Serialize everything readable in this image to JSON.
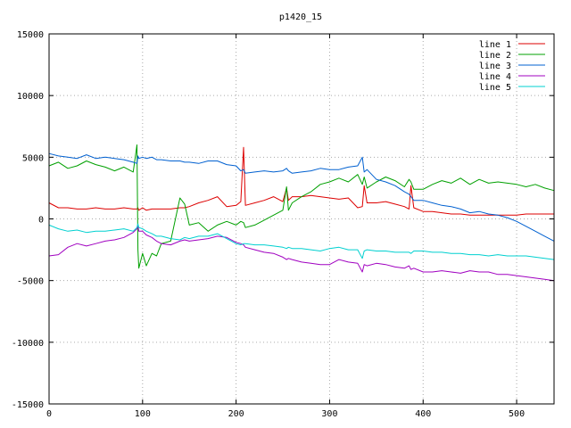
{
  "chart_data": {
    "type": "line",
    "title": "p1420_15",
    "xlabel": "",
    "ylabel": "",
    "xlim": [
      0,
      540
    ],
    "ylim": [
      -15000,
      15000
    ],
    "x_ticks": [
      "0",
      "100",
      "200",
      "300",
      "400",
      "500"
    ],
    "y_ticks": [
      "15000",
      "10000",
      "5000",
      "0",
      "-5000",
      "-10000",
      "-15000"
    ],
    "grid": true,
    "legend_position": "top-right",
    "x": [
      0,
      10,
      20,
      30,
      40,
      50,
      60,
      70,
      80,
      90,
      94,
      95,
      96,
      100,
      104,
      110,
      115,
      120,
      130,
      140,
      145,
      150,
      160,
      170,
      180,
      190,
      200,
      205,
      208,
      210,
      220,
      230,
      240,
      250,
      254,
      256,
      260,
      270,
      280,
      290,
      300,
      310,
      320,
      330,
      335,
      337,
      340,
      350,
      360,
      370,
      380,
      385,
      387,
      390,
      400,
      410,
      420,
      430,
      440,
      450,
      460,
      470,
      480,
      490,
      500,
      510,
      520,
      530,
      540
    ],
    "series": [
      {
        "name": "line 1",
        "color": "#dd0000",
        "values": [
          1300,
          900,
          900,
          800,
          800,
          900,
          800,
          800,
          900,
          800,
          800,
          900,
          700,
          900,
          700,
          800,
          800,
          800,
          800,
          900,
          900,
          1000,
          1300,
          1500,
          1800,
          1000,
          1100,
          1400,
          5800,
          1100,
          1300,
          1500,
          1800,
          1400,
          2500,
          1500,
          1800,
          1800,
          1900,
          1800,
          1700,
          1600,
          1700,
          900,
          1000,
          2700,
          1300,
          1300,
          1400,
          1200,
          1000,
          800,
          2700,
          900,
          600,
          600,
          500,
          400,
          400,
          300,
          300,
          300,
          300,
          300,
          300,
          400,
          400,
          400,
          400
        ]
      },
      {
        "name": "line 2",
        "color": "#00a000",
        "values": [
          4300,
          4600,
          4100,
          4300,
          4700,
          4400,
          4200,
          3900,
          4200,
          3800,
          6000,
          -2500,
          -4000,
          -2800,
          -3800,
          -2800,
          -3000,
          -2000,
          -1800,
          1700,
          1200,
          -500,
          -300,
          -1000,
          -500,
          -200,
          -500,
          -200,
          -300,
          -700,
          -500,
          -100,
          300,
          700,
          2600,
          700,
          1300,
          1800,
          2200,
          2800,
          3000,
          3300,
          3000,
          3600,
          2800,
          3400,
          2500,
          3000,
          3400,
          3100,
          2600,
          3200,
          3000,
          2400,
          2400,
          2800,
          3100,
          2900,
          3300,
          2800,
          3200,
          2900,
          3000,
          2900,
          2800,
          2600,
          2800,
          2500,
          2300
        ]
      },
      {
        "name": "line 3",
        "color": "#0060d0",
        "values": [
          5300,
          5100,
          5000,
          4900,
          5200,
          4900,
          5000,
          4900,
          4800,
          4600,
          4500,
          5100,
          4900,
          5000,
          4900,
          5000,
          4800,
          4800,
          4700,
          4700,
          4600,
          4600,
          4500,
          4700,
          4700,
          4400,
          4300,
          3900,
          4000,
          3700,
          3800,
          3900,
          3800,
          3900,
          4100,
          3900,
          3700,
          3800,
          3900,
          4100,
          4000,
          4000,
          4200,
          4300,
          5000,
          3800,
          4000,
          3200,
          3000,
          2700,
          2200,
          2000,
          1800,
          1500,
          1500,
          1300,
          1100,
          1000,
          800,
          500,
          600,
          400,
          300,
          100,
          -200,
          -600,
          -1000,
          -1400,
          -1800
        ]
      },
      {
        "name": "line 4",
        "color": "#a000c0",
        "values": [
          -3000,
          -2900,
          -2300,
          -2000,
          -2200,
          -2000,
          -1800,
          -1700,
          -1500,
          -1100,
          -800,
          -500,
          -1000,
          -1000,
          -1300,
          -1500,
          -1800,
          -2000,
          -2100,
          -1800,
          -1700,
          -1800,
          -1700,
          -1600,
          -1400,
          -1500,
          -1900,
          -2000,
          -2100,
          -2300,
          -2500,
          -2700,
          -2800,
          -3100,
          -3300,
          -3200,
          -3300,
          -3500,
          -3600,
          -3700,
          -3700,
          -3300,
          -3500,
          -3600,
          -4300,
          -3700,
          -3800,
          -3600,
          -3700,
          -3900,
          -4000,
          -3800,
          -4100,
          -4000,
          -4300,
          -4300,
          -4200,
          -4300,
          -4400,
          -4200,
          -4300,
          -4300,
          -4500,
          -4500,
          -4600,
          -4700,
          -4800,
          -4900,
          -5000
        ]
      },
      {
        "name": "line 5",
        "color": "#00d0d0",
        "values": [
          -500,
          -800,
          -1000,
          -900,
          -1100,
          -1000,
          -1000,
          -900,
          -800,
          -1000,
          -700,
          -400,
          -700,
          -800,
          -1000,
          -1200,
          -1400,
          -1400,
          -1600,
          -1700,
          -1500,
          -1600,
          -1400,
          -1400,
          -1200,
          -1600,
          -2000,
          -2100,
          -2000,
          -2000,
          -2100,
          -2100,
          -2200,
          -2300,
          -2400,
          -2300,
          -2400,
          -2400,
          -2500,
          -2600,
          -2400,
          -2300,
          -2500,
          -2500,
          -3200,
          -2600,
          -2500,
          -2600,
          -2600,
          -2700,
          -2700,
          -2700,
          -2800,
          -2600,
          -2600,
          -2700,
          -2700,
          -2800,
          -2800,
          -2900,
          -2900,
          -3000,
          -2900,
          -3000,
          -3000,
          -3000,
          -3100,
          -3200,
          -3300
        ]
      }
    ]
  }
}
